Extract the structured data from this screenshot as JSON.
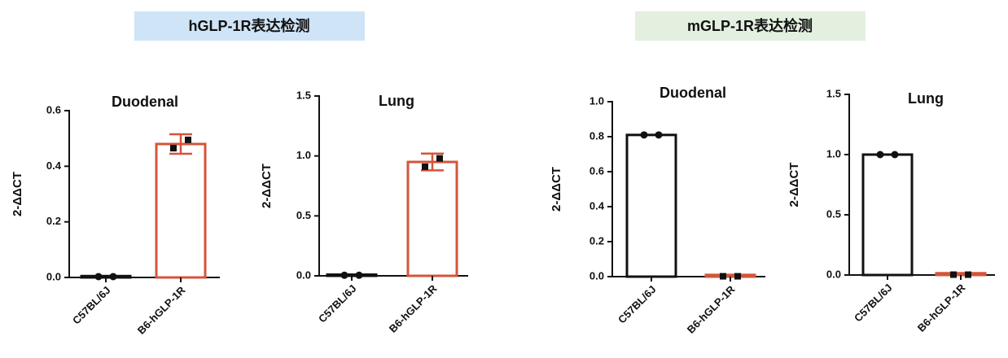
{
  "headers": [
    "hGLP-1R表达检测",
    "mGLP-1R表达检测"
  ],
  "chart_data": [
    {
      "type": "bar",
      "title": "Duodenal",
      "y_label": "2-ΔΔCT",
      "categories": [
        "C57BL/6J",
        "B6-hGLP-1R"
      ],
      "values": [
        0.005,
        0.48
      ],
      "errors": [
        null,
        0.035
      ],
      "points": [
        [
          0.003,
          0.003
        ],
        [
          0.465,
          0.495
        ]
      ],
      "colors": [
        "#111111",
        "#d4553a"
      ],
      "markers": [
        "circle",
        "square"
      ],
      "ylim": [
        0,
        0.6
      ],
      "yticks": [
        {
          "value": 0,
          "label": "0.0"
        },
        0.2,
        0.4,
        0.6
      ]
    },
    {
      "type": "bar",
      "title": "Lung",
      "y_label": "2-ΔΔCT",
      "categories": [
        "C57BL/6J",
        "B6-hGLP-1R"
      ],
      "values": [
        0.01,
        0.95
      ],
      "errors": [
        null,
        0.07
      ],
      "points": [
        [
          0.005,
          0.005
        ],
        [
          0.91,
          0.98
        ]
      ],
      "colors": [
        "#111111",
        "#d4553a"
      ],
      "markers": [
        "circle",
        "square"
      ],
      "ylim": [
        0,
        1.5
      ],
      "yticks": [
        {
          "value": 0,
          "label": "0.0"
        },
        0.5,
        {
          "value": 1,
          "label": "1.0"
        },
        1.5
      ]
    },
    {
      "type": "bar",
      "title": "Duodenal",
      "y_label": "2-ΔΔCT",
      "categories": [
        "C57BL/6J",
        "B6-hGLP-1R"
      ],
      "values": [
        0.81,
        0.01
      ],
      "points": [
        [
          0.81,
          0.81
        ],
        [
          0.002,
          0.002
        ]
      ],
      "colors": [
        "#111111",
        "#d4553a"
      ],
      "markers": [
        "circle",
        "square"
      ],
      "ylim": [
        0,
        1
      ],
      "yticks": [
        {
          "value": 0,
          "label": "0.0"
        },
        0.2,
        0.4,
        0.6,
        0.8,
        {
          "value": 1,
          "label": "1.0"
        }
      ]
    },
    {
      "type": "bar",
      "title": "Lung",
      "y_label": "2-ΔΔCT",
      "categories": [
        "C57BL/6J",
        "B6-hGLP-1R"
      ],
      "values": [
        1.0,
        0.015
      ],
      "points": [
        [
          1.0,
          1.0
        ],
        [
          0.003,
          0.003
        ]
      ],
      "colors": [
        "#111111",
        "#d4553a"
      ],
      "markers": [
        "circle",
        "square"
      ],
      "ylim": [
        0,
        1.5
      ],
      "yticks": [
        {
          "value": 0,
          "label": "0.0"
        },
        0.5,
        {
          "value": 1,
          "label": "1.0"
        },
        1.5
      ]
    }
  ]
}
